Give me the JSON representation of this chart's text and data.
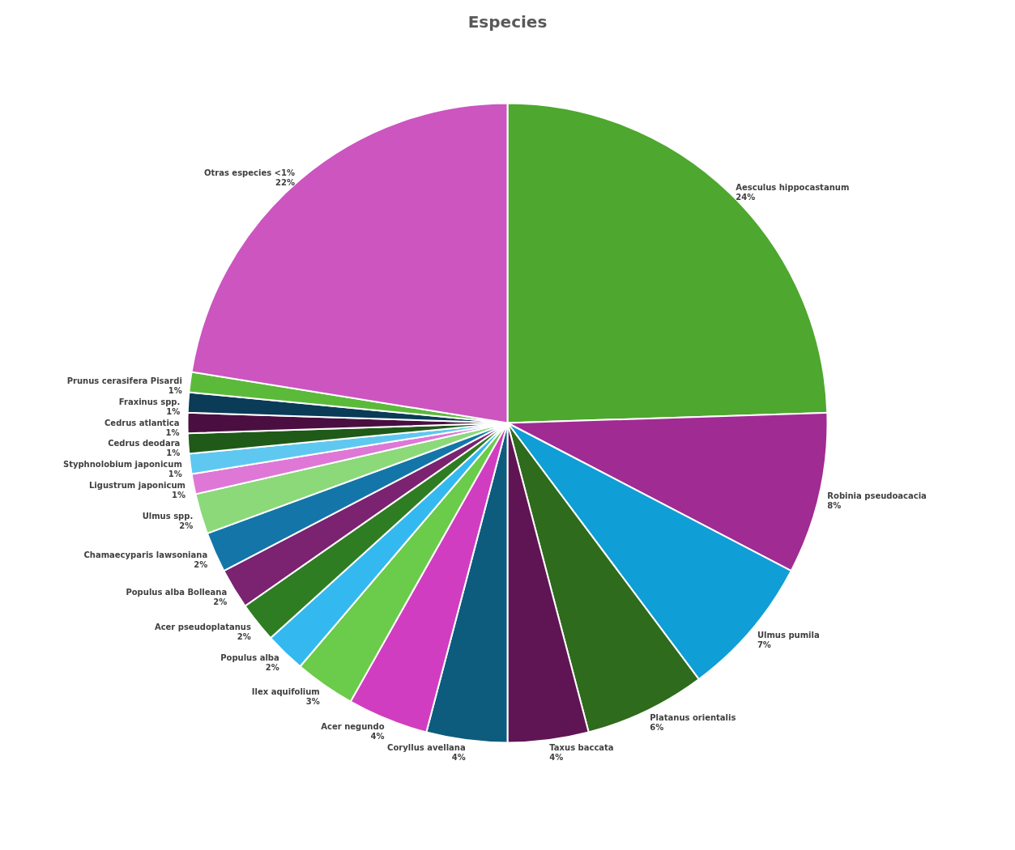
{
  "chart_data": {
    "type": "pie",
    "title": "Especies",
    "categories": [
      "Aesculus hippocastanum",
      "Robinia pseudoacacia",
      "Ulmus pumila",
      "Platanus orientalis",
      "Taxus baccata",
      "Coryllus avellana",
      "Acer negundo",
      "Ilex aquifolium",
      "Populus alba",
      "Acer pseudoplatanus",
      "Populus alba Bolleana",
      "Chamaecyparis lawsoniana",
      "Ulmus spp.",
      "Ligustrum japonicum",
      "Styphnolobium japonicum",
      "Cedrus deodara",
      "Cedrus atlantica",
      "Fraxinus spp.",
      "Prunus cerasifera Pisardi",
      "Otras especies <1%"
    ],
    "values": [
      24,
      8,
      7,
      6,
      4,
      4,
      4,
      3,
      2,
      2,
      2,
      2,
      2,
      1,
      1,
      1,
      1,
      1,
      1,
      22
    ],
    "colors": [
      "#4ea72e",
      "#a02b93",
      "#0f9ed5",
      "#2e6b1c",
      "#5f1554",
      "#0d5c7d",
      "#d13dc0",
      "#6bcb4a",
      "#33b9ef",
      "#2f7d22",
      "#7b2270",
      "#1476a8",
      "#8bd979",
      "#df77d6",
      "#5fc8f0",
      "#1f5a18",
      "#4a0f40",
      "#0a3b57",
      "#5cba3a",
      "#cc55c0"
    ],
    "value_labels": [
      "24%",
      "8%",
      "7%",
      "6%",
      "4%",
      "4%",
      "4%",
      "3%",
      "2%",
      "2%",
      "2%",
      "2%",
      "2%",
      "1%",
      "1%",
      "1%",
      "1%",
      "1%",
      "1%",
      "22%"
    ]
  }
}
